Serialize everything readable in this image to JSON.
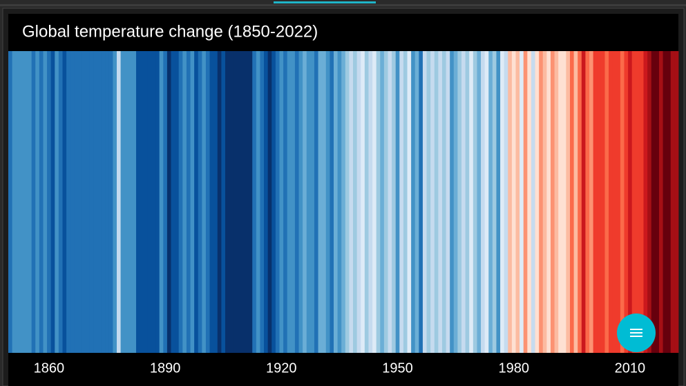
{
  "chart_data": {
    "type": "stripes",
    "title": "Global temperature change (1850-2022)",
    "x": [
      1850,
      1851,
      1852,
      1853,
      1854,
      1855,
      1856,
      1857,
      1858,
      1859,
      1860,
      1861,
      1862,
      1863,
      1864,
      1865,
      1866,
      1867,
      1868,
      1869,
      1870,
      1871,
      1872,
      1873,
      1874,
      1875,
      1876,
      1877,
      1878,
      1879,
      1880,
      1881,
      1882,
      1883,
      1884,
      1885,
      1886,
      1887,
      1888,
      1889,
      1890,
      1891,
      1892,
      1893,
      1894,
      1895,
      1896,
      1897,
      1898,
      1899,
      1900,
      1901,
      1902,
      1903,
      1904,
      1905,
      1906,
      1907,
      1908,
      1909,
      1910,
      1911,
      1912,
      1913,
      1914,
      1915,
      1916,
      1917,
      1918,
      1919,
      1920,
      1921,
      1922,
      1923,
      1924,
      1925,
      1926,
      1927,
      1928,
      1929,
      1930,
      1931,
      1932,
      1933,
      1934,
      1935,
      1936,
      1937,
      1938,
      1939,
      1940,
      1941,
      1942,
      1943,
      1944,
      1945,
      1946,
      1947,
      1948,
      1949,
      1950,
      1951,
      1952,
      1953,
      1954,
      1955,
      1956,
      1957,
      1958,
      1959,
      1960,
      1961,
      1962,
      1963,
      1964,
      1965,
      1966,
      1967,
      1968,
      1969,
      1970,
      1971,
      1972,
      1973,
      1974,
      1975,
      1976,
      1977,
      1978,
      1979,
      1980,
      1981,
      1982,
      1983,
      1984,
      1985,
      1986,
      1987,
      1988,
      1989,
      1990,
      1991,
      1992,
      1993,
      1994,
      1995,
      1996,
      1997,
      1998,
      1999,
      2000,
      2001,
      2002,
      2003,
      2004,
      2005,
      2006,
      2007,
      2008,
      2009,
      2010,
      2011,
      2012,
      2013,
      2014,
      2015,
      2016,
      2017,
      2018,
      2019,
      2020,
      2021,
      2022
    ],
    "colors": [
      "#2171b5",
      "#4292c6",
      "#4292c6",
      "#4292c6",
      "#4292c6",
      "#4292c6",
      "#2171b5",
      "#4292c6",
      "#2171b5",
      "#4292c6",
      "#2171b5",
      "#08519c",
      "#4292c6",
      "#2171b5",
      "#08519c",
      "#2171b5",
      "#2171b5",
      "#2171b5",
      "#2171b5",
      "#2171b5",
      "#2171b5",
      "#2171b5",
      "#2171b5",
      "#2171b5",
      "#2171b5",
      "#2171b5",
      "#2171b5",
      "#4292c6",
      "#c6dbef",
      "#4292c6",
      "#4292c6",
      "#4292c6",
      "#4292c6",
      "#08519c",
      "#08519c",
      "#08519c",
      "#08519c",
      "#08519c",
      "#08519c",
      "#4292c6",
      "#2171b5",
      "#08306b",
      "#08519c",
      "#08519c",
      "#2171b5",
      "#4292c6",
      "#2171b5",
      "#4292c6",
      "#08519c",
      "#2171b5",
      "#4292c6",
      "#2171b5",
      "#08519c",
      "#08519c",
      "#08306b",
      "#08519c",
      "#08306b",
      "#08306b",
      "#08306b",
      "#08306b",
      "#08306b",
      "#08306b",
      "#08306b",
      "#2171b5",
      "#4292c6",
      "#2171b5",
      "#08519c",
      "#08306b",
      "#08519c",
      "#2171b5",
      "#4292c6",
      "#2171b5",
      "#4292c6",
      "#4292c6",
      "#2171b5",
      "#4292c6",
      "#6baed6",
      "#4292c6",
      "#4292c6",
      "#2171b5",
      "#6baed6",
      "#6baed6",
      "#4292c6",
      "#2171b5",
      "#6baed6",
      "#4292c6",
      "#6baed6",
      "#9ecae1",
      "#c6dbef",
      "#9ecae1",
      "#c6dbef",
      "#deebf7",
      "#9ecae1",
      "#c6dbef",
      "#deebf7",
      "#9ecae1",
      "#6baed6",
      "#9ecae1",
      "#c6dbef",
      "#9ecae1",
      "#4292c6",
      "#c6dbef",
      "#9ecae1",
      "#deebf7",
      "#4292c6",
      "#6baed6",
      "#2171b5",
      "#c6dbef",
      "#9ecae1",
      "#c6dbef",
      "#9ecae1",
      "#c6dbef",
      "#9ecae1",
      "#c6dbef",
      "#4292c6",
      "#6baed6",
      "#9ecae1",
      "#c6dbef",
      "#9ecae1",
      "#deebf7",
      "#9ecae1",
      "#6baed6",
      "#c6dbef",
      "#deebf7",
      "#6baed6",
      "#9ecae1",
      "#4292c6",
      "#deebf7",
      "#c6dbef",
      "#fcbba1",
      "#fee0d2",
      "#fcbba1",
      "#deebf7",
      "#fc9272",
      "#fee0d2",
      "#c6dbef",
      "#fee0d2",
      "#fc9272",
      "#fcbba1",
      "#fee0d2",
      "#fc9272",
      "#fcbba1",
      "#fee0d2",
      "#fee0d2",
      "#fcbba1",
      "#fb6a4a",
      "#fcbba1",
      "#fb6a4a",
      "#cb181d",
      "#fb6a4a",
      "#fc9272",
      "#ef3b2c",
      "#ef3b2c",
      "#ef3b2c",
      "#fb6a4a",
      "#ef3b2c",
      "#ef3b2c",
      "#ef3b2c",
      "#fb6a4a",
      "#ef3b2c",
      "#cb181d",
      "#ef3b2c",
      "#ef3b2c",
      "#ef3b2c",
      "#cb181d",
      "#a50f15",
      "#67000d",
      "#67000d",
      "#a50f15",
      "#67000d",
      "#67000d",
      "#a50f15",
      "#a50f15"
    ],
    "xlim": [
      1849.5,
      2022.5
    ],
    "xticks": [
      1860,
      1890,
      1920,
      1950,
      1980,
      2010
    ]
  }
}
